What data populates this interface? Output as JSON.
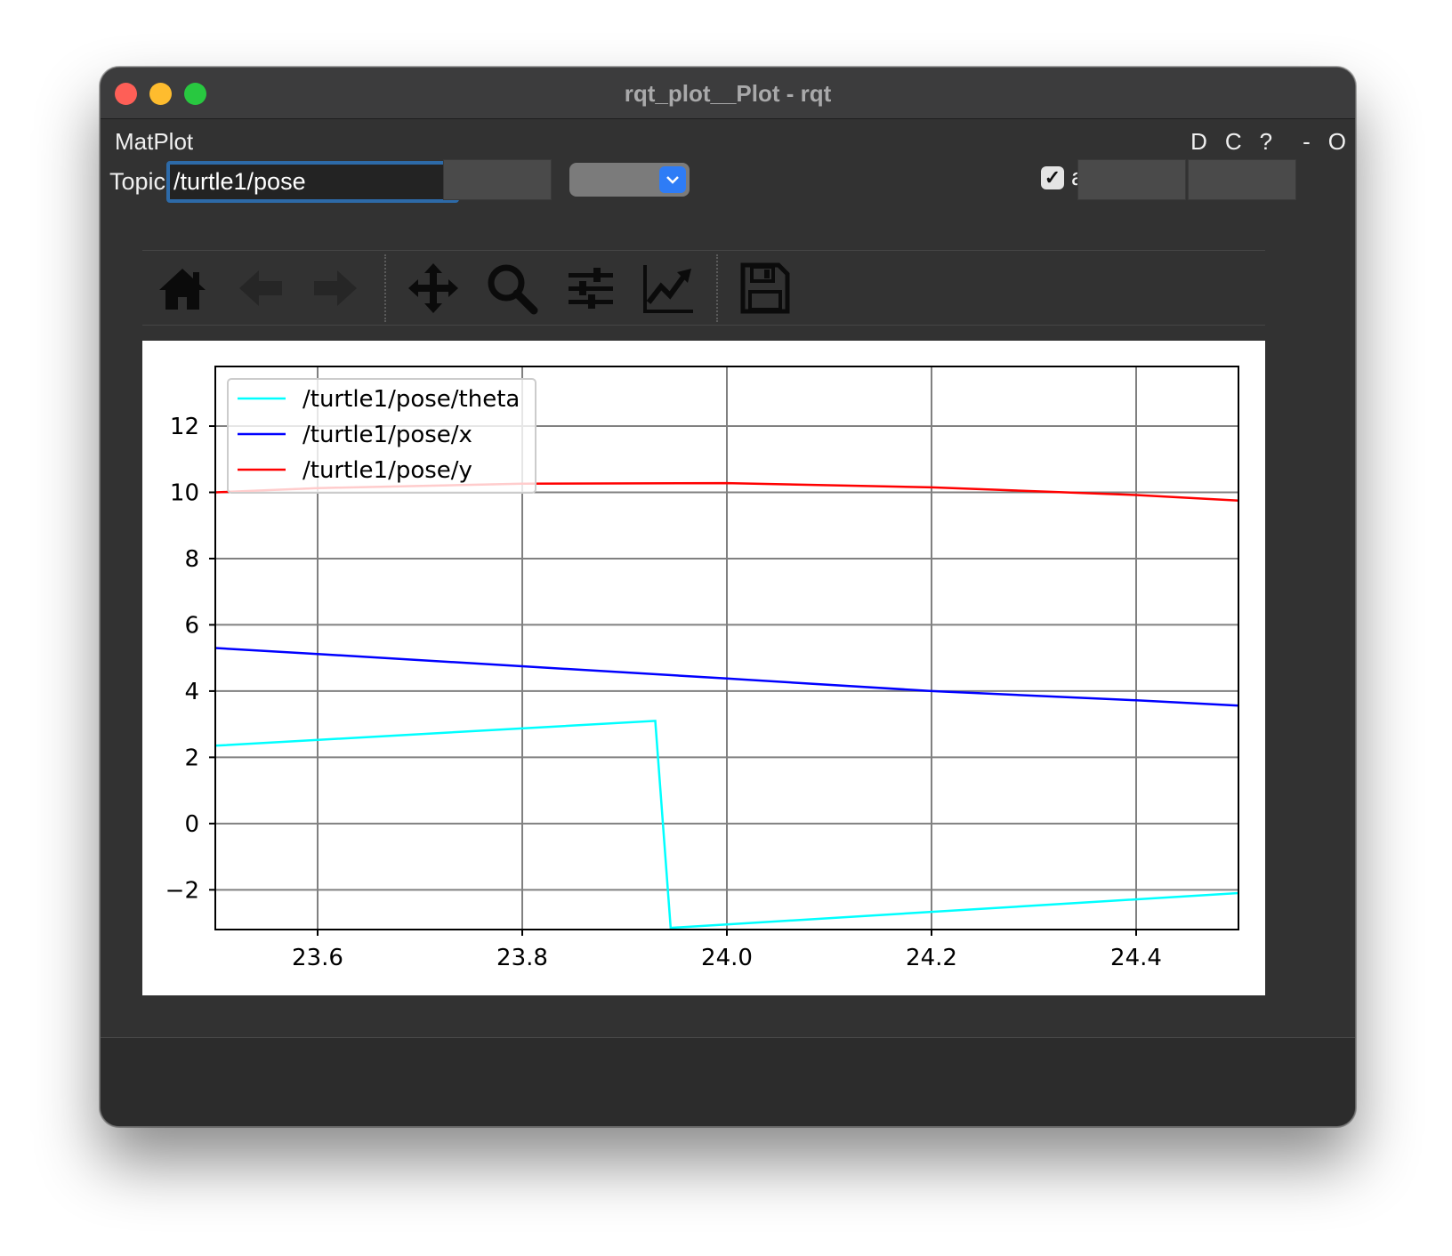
{
  "window": {
    "title": "rqt_plot__Plot - rqt"
  },
  "dock": {
    "title": "MatPlot",
    "controls": [
      "D",
      "C",
      "?",
      "-",
      "O"
    ]
  },
  "topic": {
    "label": "Topic",
    "value": "/turtle1/pose"
  },
  "autoscroll": {
    "label": "autoscroll",
    "checked": true
  },
  "toolbar": {
    "icons": [
      "home-icon",
      "back-arrow-icon",
      "forward-arrow-icon",
      "pan-icon",
      "zoom-icon",
      "subplots-icon",
      "axes-edit-icon",
      "save-icon"
    ]
  },
  "colors": {
    "theta": "#00ffff",
    "x": "#0000ff",
    "y": "#ff0000"
  },
  "chart_data": {
    "type": "line",
    "title": "",
    "xlabel": "",
    "ylabel": "",
    "xlim": [
      23.5,
      24.5
    ],
    "ylim": [
      -3.2,
      13.8
    ],
    "xticks": [
      "23.6",
      "23.8",
      "24.0",
      "24.2",
      "24.4"
    ],
    "yticks": [
      "12",
      "10",
      "8",
      "6",
      "4",
      "2",
      "0",
      "−2"
    ],
    "grid": true,
    "legend_position": "top-left",
    "series": [
      {
        "name": "/turtle1/pose/theta",
        "color": "#00ffff",
        "x": [
          23.5,
          23.93,
          23.945,
          24.5
        ],
        "y": [
          2.35,
          3.1,
          -3.15,
          -2.1
        ]
      },
      {
        "name": "/turtle1/pose/x",
        "color": "#0000ff",
        "x": [
          23.5,
          23.6,
          23.8,
          24.0,
          24.2,
          24.4,
          24.5
        ],
        "y": [
          5.3,
          5.12,
          4.75,
          4.38,
          4.0,
          3.72,
          3.56
        ]
      },
      {
        "name": "/turtle1/pose/y",
        "color": "#ff0000",
        "x": [
          23.5,
          23.6,
          23.8,
          24.0,
          24.2,
          24.4,
          24.5
        ],
        "y": [
          10.0,
          10.13,
          10.26,
          10.28,
          10.15,
          9.92,
          9.75
        ]
      }
    ]
  }
}
